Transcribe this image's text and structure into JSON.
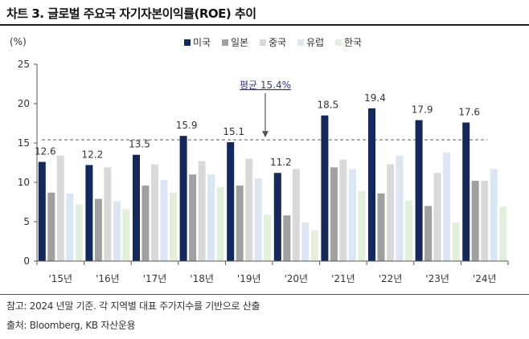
{
  "title": "차트 3. 글로벌 주요국 자기자본이익률(ROE) 추이",
  "footnotes": {
    "note": "참고: 2024 년말 기준. 각 지역별 대표 주가지수를 기반으로 산출",
    "source": "출처: Bloomberg, KB 자산운용"
  },
  "chart_data": {
    "type": "bar",
    "ylabel": "(%)",
    "ylim": [
      0,
      25
    ],
    "yticks": [
      0,
      5,
      10,
      15,
      20,
      25
    ],
    "grid": false,
    "legend_position": "top",
    "categories": [
      "'15년",
      "'16년",
      "'17년",
      "'18년",
      "'19년",
      "'20년",
      "'21년",
      "'22년",
      "'23년",
      "'24년"
    ],
    "series": [
      {
        "name": "미국",
        "color": "#14285a",
        "values": [
          12.6,
          12.2,
          13.5,
          15.9,
          15.1,
          11.2,
          18.5,
          19.4,
          17.9,
          17.6
        ]
      },
      {
        "name": "일본",
        "color": "#a0a0a0",
        "values": [
          8.7,
          7.9,
          9.6,
          11.0,
          9.6,
          5.8,
          11.9,
          8.6,
          7.0,
          10.2
        ]
      },
      {
        "name": "중국",
        "color": "#d9d9d9",
        "values": [
          13.4,
          11.9,
          12.3,
          12.7,
          13.0,
          11.7,
          12.9,
          12.3,
          11.2,
          10.2
        ]
      },
      {
        "name": "유럽",
        "color": "#dce6f2",
        "values": [
          8.6,
          7.6,
          10.3,
          11.0,
          10.5,
          4.9,
          11.7,
          13.4,
          13.8,
          11.7
        ]
      },
      {
        "name": "한국",
        "color": "#e2efda",
        "values": [
          7.2,
          6.6,
          8.7,
          9.4,
          5.9,
          3.9,
          8.9,
          7.7,
          4.9,
          6.9
        ]
      }
    ],
    "data_labels": {
      "series": "미국",
      "values": [
        "12.6",
        "12.2",
        "13.5",
        "15.9",
        "15.1",
        "11.2",
        "18.5",
        "19.4",
        "17.9",
        "17.6"
      ]
    },
    "reference_line": {
      "value": 15.4,
      "label": "평균 15.4%",
      "style": "dashed"
    }
  }
}
